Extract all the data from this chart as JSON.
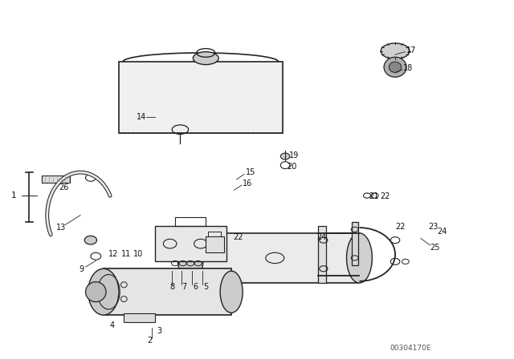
{
  "bg_color": "#ffffff",
  "diagram_code": "00304170E",
  "fig_width": 6.4,
  "fig_height": 4.48,
  "dpi": 100,
  "line_color": "#222222",
  "label_color": "#111111",
  "dim_code_color": "#555555"
}
